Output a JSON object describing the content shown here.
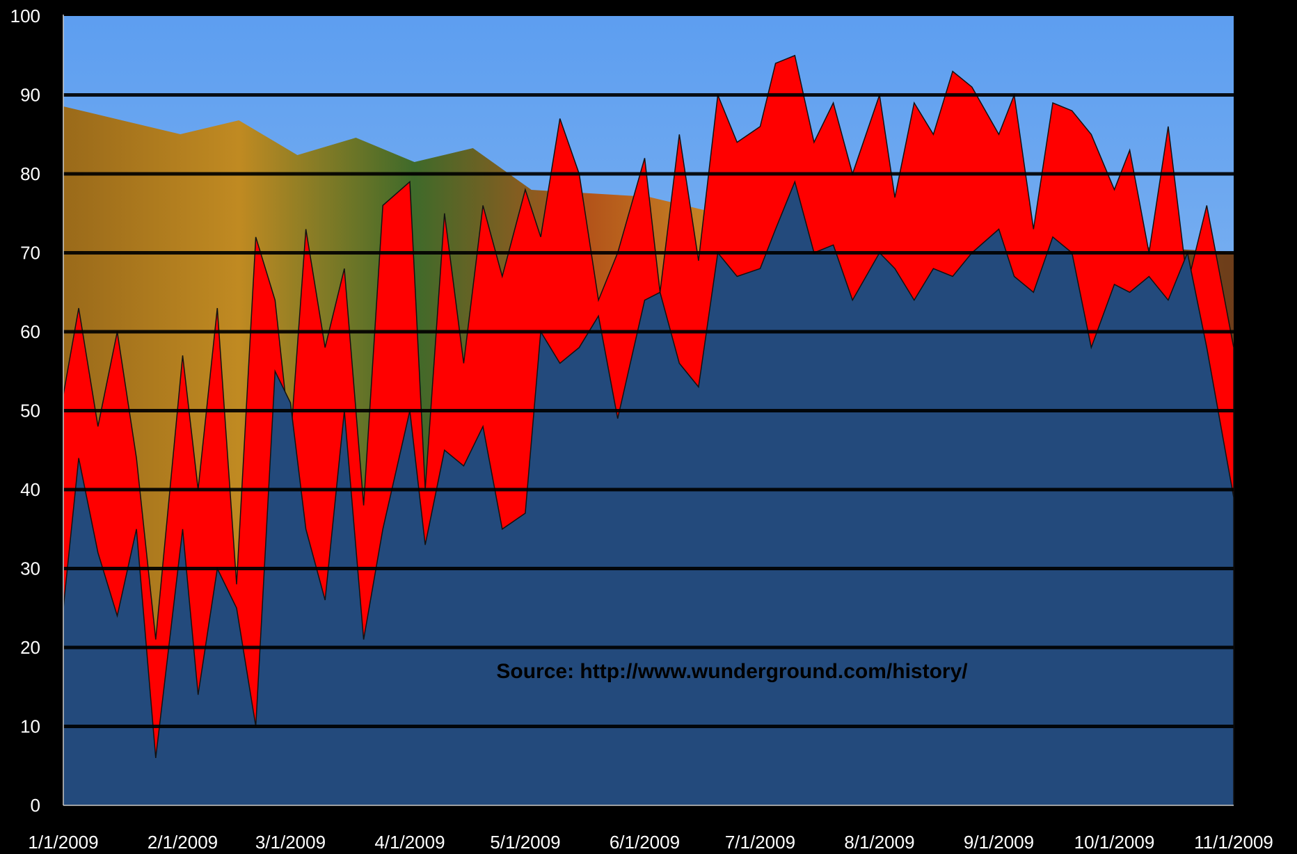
{
  "chart_data": {
    "type": "area",
    "x_start": "1/1/2009",
    "x_end": "11/1/2009",
    "ylim": [
      0,
      100
    ],
    "yticks": [
      0,
      10,
      20,
      30,
      40,
      50,
      60,
      70,
      80,
      90,
      100
    ],
    "xticks": [
      "1/1/2009",
      "2/1/2009",
      "3/1/2009",
      "4/1/2009",
      "5/1/2009",
      "6/1/2009",
      "7/1/2009",
      "8/1/2009",
      "9/1/2009",
      "10/1/2009",
      "11/1/2009"
    ],
    "grid": true,
    "annotation": "Source: http://www.wunderground.com/history/",
    "colors": {
      "high_band": "#ff0000",
      "low_area": "#234a7c",
      "background": "#000000",
      "grid": "#000000",
      "text": "#ffffff"
    },
    "series": [
      {
        "role": "high",
        "x": [
          "1/1/2009",
          "1/5/2009",
          "1/10/2009",
          "1/15/2009",
          "1/20/2009",
          "1/25/2009",
          "2/1/2009",
          "2/5/2009",
          "2/10/2009",
          "2/15/2009",
          "2/20/2009",
          "2/25/2009",
          "3/1/2009",
          "3/5/2009",
          "3/10/2009",
          "3/15/2009",
          "3/20/2009",
          "3/25/2009",
          "4/1/2009",
          "4/5/2009",
          "4/10/2009",
          "4/15/2009",
          "4/20/2009",
          "4/25/2009",
          "5/1/2009",
          "5/5/2009",
          "5/10/2009",
          "5/15/2009",
          "5/20/2009",
          "5/25/2009",
          "6/1/2009",
          "6/5/2009",
          "6/10/2009",
          "6/15/2009",
          "6/20/2009",
          "6/25/2009",
          "7/1/2009",
          "7/5/2009",
          "7/10/2009",
          "7/15/2009",
          "7/20/2009",
          "7/25/2009",
          "8/1/2009",
          "8/5/2009",
          "8/10/2009",
          "8/15/2009",
          "8/20/2009",
          "8/25/2009",
          "9/1/2009",
          "9/5/2009",
          "9/10/2009",
          "9/15/2009",
          "9/20/2009",
          "9/25/2009",
          "10/1/2009",
          "10/5/2009",
          "10/10/2009",
          "10/15/2009",
          "10/20/2009",
          "10/25/2009",
          "11/1/2009"
        ],
        "values": [
          52,
          63,
          48,
          60,
          44,
          21,
          57,
          40,
          63,
          28,
          72,
          64,
          46,
          73,
          58,
          68,
          38,
          76,
          79,
          40,
          75,
          56,
          76,
          67,
          78,
          72,
          87,
          80,
          64,
          70,
          82,
          65,
          85,
          69,
          90,
          84,
          86,
          94,
          95,
          84,
          89,
          80,
          90,
          77,
          89,
          85,
          93,
          91,
          85,
          90,
          73,
          89,
          88,
          85,
          78,
          83,
          70,
          86,
          66,
          76,
          58
        ]
      },
      {
        "role": "low",
        "x": [
          "1/1/2009",
          "1/5/2009",
          "1/10/2009",
          "1/15/2009",
          "1/20/2009",
          "1/25/2009",
          "2/1/2009",
          "2/5/2009",
          "2/10/2009",
          "2/15/2009",
          "2/20/2009",
          "2/25/2009",
          "3/1/2009",
          "3/5/2009",
          "3/10/2009",
          "3/15/2009",
          "3/20/2009",
          "3/25/2009",
          "4/1/2009",
          "4/5/2009",
          "4/10/2009",
          "4/15/2009",
          "4/20/2009",
          "4/25/2009",
          "5/1/2009",
          "5/5/2009",
          "5/10/2009",
          "5/15/2009",
          "5/20/2009",
          "5/25/2009",
          "6/1/2009",
          "6/5/2009",
          "6/10/2009",
          "6/15/2009",
          "6/20/2009",
          "6/25/2009",
          "7/1/2009",
          "7/5/2009",
          "7/10/2009",
          "7/15/2009",
          "7/20/2009",
          "7/25/2009",
          "8/1/2009",
          "8/5/2009",
          "8/10/2009",
          "8/15/2009",
          "8/20/2009",
          "8/25/2009",
          "9/1/2009",
          "9/5/2009",
          "9/10/2009",
          "9/15/2009",
          "9/20/2009",
          "9/25/2009",
          "10/1/2009",
          "10/5/2009",
          "10/10/2009",
          "10/15/2009",
          "10/20/2009",
          "10/25/2009",
          "11/1/2009"
        ],
        "values": [
          25,
          44,
          32,
          24,
          35,
          6,
          35,
          14,
          30,
          25,
          10,
          55,
          51,
          35,
          26,
          50,
          21,
          35,
          50,
          33,
          45,
          43,
          48,
          35,
          37,
          60,
          56,
          58,
          62,
          49,
          64,
          65,
          56,
          53,
          70,
          67,
          68,
          73,
          79,
          70,
          71,
          64,
          70,
          68,
          64,
          68,
          67,
          70,
          73,
          67,
          65,
          72,
          70,
          58,
          66,
          65,
          67,
          64,
          70,
          58,
          39
        ]
      }
    ]
  }
}
